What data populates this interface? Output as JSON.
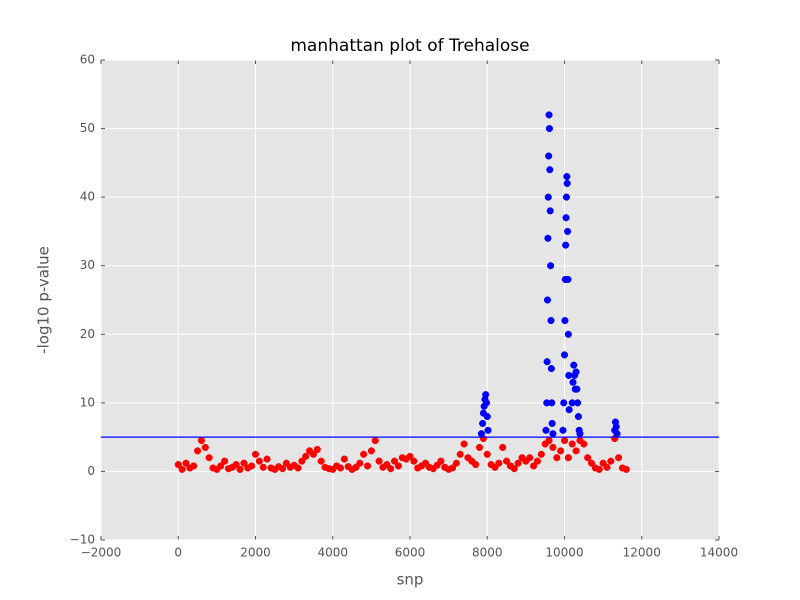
{
  "chart_data": {
    "type": "scatter",
    "title": "manhattan plot of Trehalose",
    "xlabel": "snp",
    "ylabel": "-log10 p-value",
    "xlim": [
      -2000,
      14000
    ],
    "ylim": [
      -10,
      60
    ],
    "xticks": [
      {
        "value": -2000,
        "label": "−2000"
      },
      0,
      2000,
      4000,
      6000,
      8000,
      10000,
      12000,
      14000
    ],
    "yticks": [
      {
        "value": -10,
        "label": "−10"
      },
      0,
      10,
      20,
      30,
      40,
      50,
      60
    ],
    "grid": true,
    "background": "#e5e5e5",
    "hline": 5,
    "hline_color": "#0000ff",
    "series": [
      {
        "color": "#ff0000",
        "x": [
          0,
          100,
          200,
          300,
          400,
          500,
          600,
          700,
          800,
          900,
          1000,
          1100,
          1200,
          1300,
          1400,
          1500,
          1600,
          1700,
          1800,
          1900,
          2000,
          2100,
          2200,
          2300,
          2400,
          2500,
          2600,
          2700,
          2800,
          2900,
          3000,
          3100,
          3200,
          3300,
          3400,
          3500,
          3600,
          3700,
          3800,
          3900,
          4000,
          4100,
          4200,
          4300,
          4400,
          4500,
          4600,
          4700,
          4800,
          4900,
          5000,
          5100,
          5200,
          5300,
          5400,
          5500,
          5600,
          5700,
          5800,
          5900,
          6000,
          6100,
          6200,
          6300,
          6400,
          6500,
          6600,
          6700,
          6800,
          6900,
          7000,
          7100,
          7200,
          7300,
          7400,
          7500,
          7600,
          7700,
          7800,
          7900,
          8000,
          8100,
          8200,
          8300,
          8400,
          8500,
          8600,
          8700,
          8800,
          8900,
          9000,
          9100,
          9200,
          9300,
          9400,
          9500,
          9600,
          9700,
          9800,
          9900,
          10000,
          10100,
          10200,
          10300,
          10400,
          10500,
          10600,
          10700,
          10800,
          10900,
          11000,
          11100,
          11200,
          11300,
          11400,
          11500,
          11600
        ],
        "values": [
          1,
          0.3,
          1.2,
          0.5,
          0.8,
          3,
          4.5,
          3.5,
          2,
          0.5,
          0.3,
          0.8,
          1.5,
          0.4,
          0.6,
          1,
          0.3,
          1.2,
          0.5,
          0.8,
          2.5,
          1.5,
          0.6,
          1.8,
          0.5,
          0.3,
          0.7,
          0.4,
          1.2,
          0.6,
          0.9,
          0.5,
          1.5,
          2.2,
          3,
          2.5,
          3.2,
          1.5,
          0.6,
          0.4,
          0.3,
          0.8,
          0.5,
          1.8,
          0.7,
          0.3,
          0.6,
          1.2,
          2.5,
          0.8,
          3,
          4.5,
          1.5,
          0.6,
          1,
          0.4,
          1.5,
          0.8,
          2,
          1.8,
          2.2,
          1.5,
          0.5,
          0.8,
          1.2,
          0.6,
          0.4,
          0.9,
          1.5,
          0.6,
          0.3,
          0.5,
          1.2,
          2.5,
          4,
          2,
          1.5,
          1,
          3.5,
          4.8,
          2.5,
          1,
          0.6,
          1.2,
          3.5,
          1.5,
          0.8,
          0.4,
          1.2,
          2,
          1.5,
          2,
          0.8,
          1.5,
          2.5,
          4,
          4.5,
          3.5,
          2,
          3,
          4.5,
          2,
          4,
          3,
          4.5,
          4,
          2,
          1.2,
          0.5,
          0.3,
          1.2,
          0.6,
          1.5,
          4.8,
          2,
          0.5,
          0.3
        ]
      },
      {
        "color": "#0000ff",
        "x": [
          7850,
          7880,
          7900,
          7920,
          7940,
          7960,
          7980,
          8000,
          8020,
          9520,
          9540,
          9550,
          9560,
          9570,
          9580,
          9590,
          9600,
          9610,
          9620,
          9630,
          9640,
          9650,
          9660,
          9670,
          9680,
          9700,
          9960,
          9980,
          10000,
          10010,
          10020,
          10030,
          10040,
          10050,
          10060,
          10070,
          10080,
          10090,
          10100,
          10110,
          10120,
          10200,
          10220,
          10240,
          10260,
          10280,
          10300,
          10320,
          10340,
          10360,
          10380,
          10400,
          11300,
          11320,
          11340,
          11360
        ],
        "values": [
          5.5,
          7,
          8.5,
          9.5,
          10.5,
          11.2,
          10,
          8,
          6,
          6,
          10,
          16,
          25,
          34,
          40,
          46,
          52,
          50,
          44,
          38,
          30,
          22,
          15,
          10,
          7,
          5.5,
          6,
          10,
          17,
          22,
          28,
          33,
          37,
          40,
          43,
          42,
          35,
          28,
          20,
          14,
          9,
          10,
          13,
          15.5,
          14,
          12,
          14.5,
          12,
          10,
          8,
          6,
          5.5,
          6,
          7.2,
          6.5,
          5.5
        ]
      }
    ]
  }
}
